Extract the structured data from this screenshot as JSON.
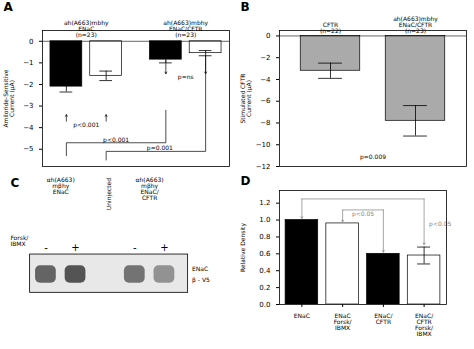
{
  "chart_data": [
    {
      "type": "bar",
      "title": "A",
      "categories": [
        null,
        null,
        null,
        null
      ],
      "values": [
        -2.1,
        -1.6,
        -0.85,
        -0.55
      ],
      "errors": [
        0.25,
        0.22,
        0.15,
        0.12
      ],
      "colors": [
        "#000000",
        "#ffffff",
        "#000000",
        "#ffffff"
      ],
      "ylabel": "Amiloride-Sensitive\nCurrent (µA)",
      "ylim": [
        -5.8,
        0.5
      ],
      "yticks": [
        0,
        -1,
        -2,
        -3,
        -4,
        -5
      ],
      "tick_labels": "y",
      "annotations": [
        "ah(A663)mbhy\nENaC\n(n=23)",
        "ah(A663)mbhy\nENaC/CFTR\n(n=23)",
        "p<0.001",
        "p=ns",
        "p<0.001",
        "p=0.001"
      ]
    },
    {
      "type": "bar",
      "title": "B",
      "categories": [
        null,
        null
      ],
      "values": [
        -3.2,
        -7.8
      ],
      "errors": [
        0.7,
        1.4
      ],
      "colors": [
        "#aaaaaa",
        "#aaaaaa"
      ],
      "ylabel": "Stimulated CFTR\nCurrent (µA)",
      "ylim": [
        -12,
        0.5
      ],
      "yticks": [
        0,
        -2,
        -4,
        -6,
        -8,
        -10,
        -12
      ],
      "tick_labels": "y",
      "annotations": [
        "CFTR\n(n=22)",
        "ah(A663)mbhy\nENaC/CFTR\n(n=23)",
        "p=0.009"
      ]
    },
    {
      "type": "blot",
      "title": "C",
      "categories": [
        "-",
        "+",
        "-",
        "+"
      ],
      "colors": [
        "#555555",
        "#444444",
        "#666666",
        "#888888"
      ],
      "annotations": [
        "αh(A663)\nmβhγ\nENaC",
        "Uninjected",
        "αh(A663)\nmβhγ\nENaC/\nCFTR",
        "Forsk/\nIBMX",
        "ENaC",
        "β - V5"
      ]
    },
    {
      "type": "bar",
      "title": "D",
      "categories": [
        "ENaC",
        "ENaC\nForsk/\nIBMX",
        "ENaC/\nCFTR",
        "ENaC/\nCFTR\nForsk/\nIBMX"
      ],
      "values": [
        1.0,
        0.96,
        0.6,
        0.58
      ],
      "errors": [
        0.0,
        0.0,
        0.0,
        0.1
      ],
      "colors": [
        "#000000",
        "#ffffff",
        "#000000",
        "#ffffff"
      ],
      "ylabel": "Relative Density",
      "ylim": [
        0.0,
        1.35
      ],
      "yticks": [
        {
          "value": 0.0,
          "label": "0.0"
        },
        0.2,
        0.4,
        0.6,
        0.8,
        {
          "value": 1.0,
          "label": "1.0"
        },
        1.2
      ],
      "annotations": [
        "p<0.05",
        "p<0.05"
      ]
    }
  ]
}
